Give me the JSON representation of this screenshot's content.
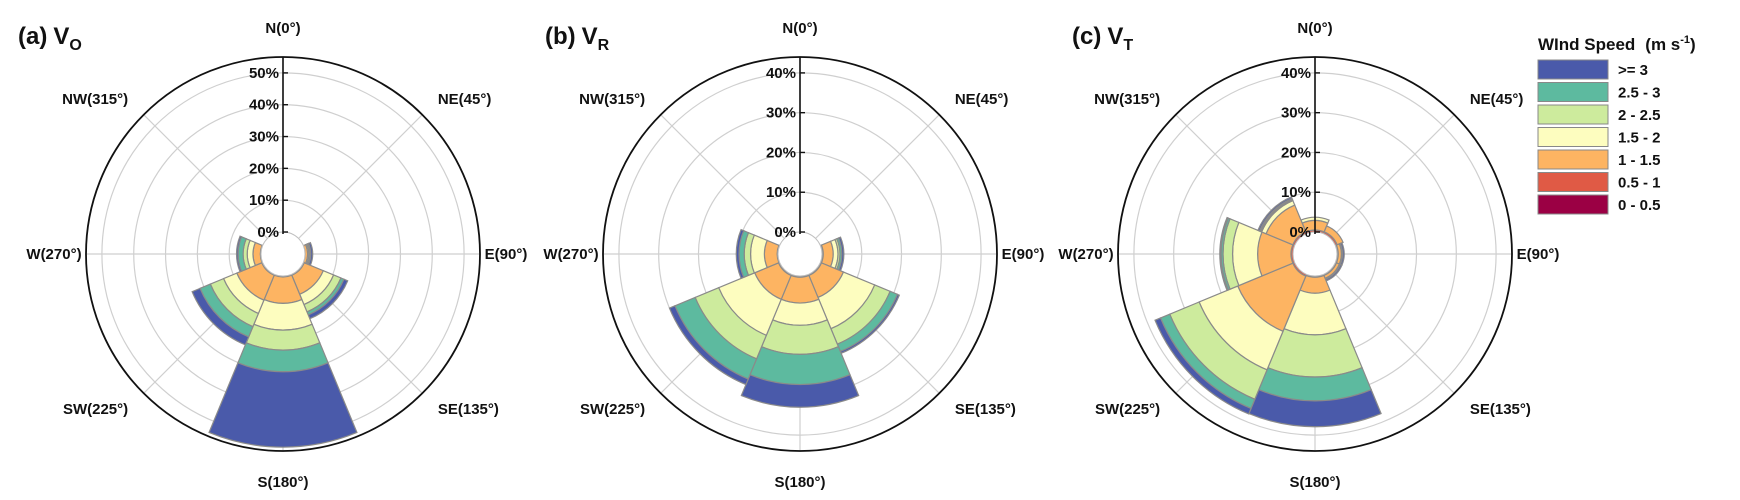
{
  "legend": {
    "title": "WInd Speed",
    "unit_base": "(m s",
    "unit_exp": "-1",
    "unit_close": ")",
    "items": [
      {
        "label": ">= 3",
        "color": "#4a5aaa"
      },
      {
        "label": "2.5 - 3",
        "color": "#5dba9f"
      },
      {
        "label": "2 - 2.5",
        "color": "#cdeb9d"
      },
      {
        "label": "1.5 - 2",
        "color": "#fdfdbf"
      },
      {
        "label": "1 - 1.5",
        "color": "#fdb462"
      },
      {
        "label": "0.5 - 1",
        "color": "#e05a45"
      },
      {
        "label": "0 - 0.5",
        "color": "#9b0044"
      }
    ]
  },
  "chart_data": [
    {
      "type": "windrose",
      "panel": "(a)",
      "var_base": "V",
      "var_sub": "O",
      "rmax": 55,
      "rticks": [
        "0%",
        "10%",
        "20%",
        "30%",
        "40%",
        "50%"
      ],
      "rtick_values": [
        0,
        10,
        20,
        30,
        40,
        50
      ],
      "directions": [
        "N(0°)",
        "NE(45°)",
        "E(90°)",
        "SE(135°)",
        "S(180°)",
        "SW(225°)",
        "W(270°)",
        "NW(315°)"
      ],
      "sectors": [
        {
          "angle": 0,
          "values": [
            0,
            0,
            0,
            0,
            0,
            0,
            0
          ]
        },
        {
          "angle": 45,
          "values": [
            0,
            0,
            0,
            0,
            0,
            0,
            0
          ]
        },
        {
          "angle": 90,
          "values": [
            0,
            0,
            0.8,
            0.4,
            0.4,
            0.2,
            0.6
          ]
        },
        {
          "angle": 135,
          "values": [
            0,
            0.3,
            6.5,
            3.5,
            2.5,
            1.0,
            1.3
          ]
        },
        {
          "angle": 180,
          "values": [
            0,
            0.3,
            8.3,
            8.4,
            6.3,
            6.8,
            23.7
          ]
        },
        {
          "angle": 225,
          "values": [
            0,
            0.3,
            8.5,
            4.5,
            4.5,
            3.5,
            2.7
          ]
        },
        {
          "angle": 270,
          "values": [
            0,
            0.2,
            2.3,
            1.8,
            1.3,
            1.6,
            0.5
          ]
        },
        {
          "angle": 315,
          "values": [
            0,
            0,
            0,
            0,
            0,
            0,
            0
          ]
        }
      ]
    },
    {
      "type": "windrose",
      "panel": "(b)",
      "var_base": "V",
      "var_sub": "R",
      "rmax": 44,
      "rticks": [
        "0%",
        "10%",
        "20%",
        "30%",
        "40%"
      ],
      "rtick_values": [
        0,
        10,
        20,
        30,
        40
      ],
      "directions": [
        "N(0°)",
        "NE(45°)",
        "E(90°)",
        "SE(135°)",
        "S(180°)",
        "SW(225°)",
        "W(270°)",
        "NW(315°)"
      ],
      "sectors": [
        {
          "angle": 0,
          "values": [
            0,
            0,
            0,
            0,
            0,
            0,
            0
          ]
        },
        {
          "angle": 45,
          "values": [
            0,
            0,
            0,
            0,
            0,
            0,
            0
          ]
        },
        {
          "angle": 90,
          "values": [
            0,
            0.3,
            2.5,
            1.2,
            0.5,
            0.5,
            0.5
          ]
        },
        {
          "angle": 135,
          "values": [
            0,
            0.3,
            6.0,
            8.5,
            4.2,
            2.0,
            0.5
          ]
        },
        {
          "angle": 180,
          "values": [
            0,
            0.3,
            6.5,
            5.6,
            7.3,
            7.6,
            5.7
          ]
        },
        {
          "angle": 225,
          "values": [
            0,
            0.3,
            6.5,
            9.8,
            6.4,
            5.5,
            1.5
          ]
        },
        {
          "angle": 270,
          "values": [
            0,
            0.2,
            3.2,
            3.5,
            1.6,
            1.3,
            0.7
          ]
        },
        {
          "angle": 315,
          "values": [
            0,
            0,
            0,
            0,
            0,
            0,
            0
          ]
        }
      ]
    },
    {
      "type": "windrose",
      "panel": "(c)",
      "var_base": "V",
      "var_sub": "T",
      "rmax": 44,
      "rticks": [
        "0%",
        "10%",
        "20%",
        "30%",
        "40%"
      ],
      "rtick_values": [
        0,
        10,
        20,
        30,
        40
      ],
      "directions": [
        "N(0°)",
        "NE(45°)",
        "E(90°)",
        "SE(135°)",
        "S(180°)",
        "SW(225°)",
        "W(270°)",
        "NW(315°)"
      ],
      "sectors": [
        {
          "angle": 0,
          "values": [
            0,
            0.5,
            2.4,
            0.8,
            0,
            0,
            0
          ]
        },
        {
          "angle": 45,
          "values": [
            0,
            0.5,
            1.6,
            0,
            0,
            0,
            0
          ]
        },
        {
          "angle": 90,
          "values": [
            0,
            0.3,
            0.8,
            0.3,
            0,
            0,
            0.4
          ]
        },
        {
          "angle": 135,
          "values": [
            0,
            0.3,
            0.8,
            0.3,
            0,
            0,
            0.4
          ]
        },
        {
          "angle": 180,
          "values": [
            0,
            0.3,
            4.0,
            10.5,
            10.6,
            6.0,
            6.5
          ]
        },
        {
          "angle": 225,
          "values": [
            0,
            0.5,
            15.0,
            10.5,
            8.0,
            2.5,
            1.5
          ]
        },
        {
          "angle": 270,
          "values": [
            0,
            0.5,
            8.4,
            6.3,
            2.4,
            0.5,
            0.3
          ]
        },
        {
          "angle": 315,
          "values": [
            0,
            0.5,
            7.3,
            1.2,
            0.3,
            0.3,
            0.4
          ]
        }
      ]
    }
  ]
}
